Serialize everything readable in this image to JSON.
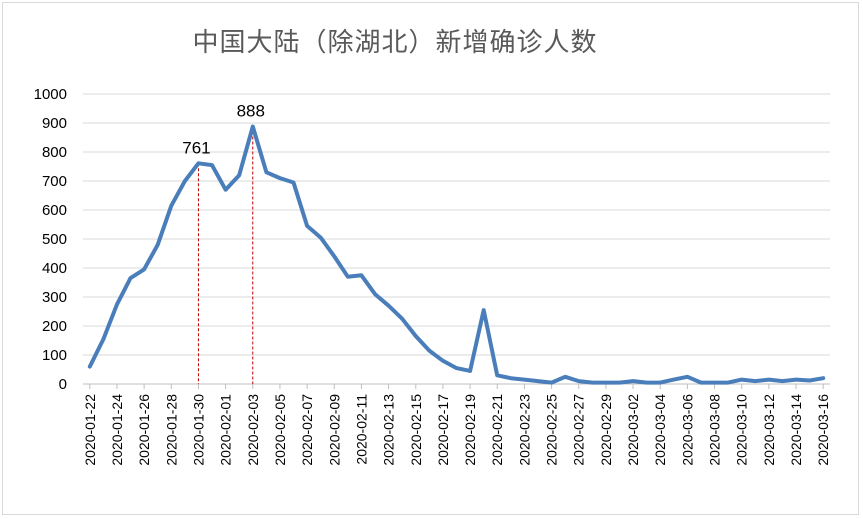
{
  "chart_data": {
    "type": "line",
    "title": "中国大陆（除湖北）新增确诊人数",
    "xlabel": "",
    "ylabel": "",
    "ylim": [
      0,
      1000
    ],
    "yticks": [
      0,
      100,
      200,
      300,
      400,
      500,
      600,
      700,
      800,
      900,
      1000
    ],
    "grid": true,
    "line_color": "#4a7ebb",
    "marker_line_color": "#c00000",
    "x_tick_labels": [
      "2020-01-22",
      "2020-01-24",
      "2020-01-26",
      "2020-01-28",
      "2020-01-30",
      "2020-02-01",
      "2020-02-03",
      "2020-02-05",
      "2020-02-07",
      "2020-02-09",
      "2020-02-11",
      "2020-02-13",
      "2020-02-15",
      "2020-02-17",
      "2020-02-19",
      "2020-02-21",
      "2020-02-23",
      "2020-02-25",
      "2020-02-27",
      "2020-02-29",
      "2020-03-02",
      "2020-03-04",
      "2020-03-06",
      "2020-03-08",
      "2020-03-10",
      "2020-03-12",
      "2020-03-14",
      "2020-03-16"
    ],
    "x": [
      "2020-01-22",
      "2020-01-23",
      "2020-01-24",
      "2020-01-25",
      "2020-01-26",
      "2020-01-27",
      "2020-01-28",
      "2020-01-29",
      "2020-01-30",
      "2020-01-31",
      "2020-02-01",
      "2020-02-02",
      "2020-02-03",
      "2020-02-04",
      "2020-02-05",
      "2020-02-06",
      "2020-02-07",
      "2020-02-08",
      "2020-02-09",
      "2020-02-10",
      "2020-02-11",
      "2020-02-12",
      "2020-02-13",
      "2020-02-14",
      "2020-02-15",
      "2020-02-16",
      "2020-02-17",
      "2020-02-18",
      "2020-02-19",
      "2020-02-20",
      "2020-02-21",
      "2020-02-22",
      "2020-02-23",
      "2020-02-24",
      "2020-02-25",
      "2020-02-26",
      "2020-02-27",
      "2020-02-28",
      "2020-02-29",
      "2020-03-01",
      "2020-03-02",
      "2020-03-03",
      "2020-03-04",
      "2020-03-05",
      "2020-03-06",
      "2020-03-07",
      "2020-03-08",
      "2020-03-09",
      "2020-03-10",
      "2020-03-11",
      "2020-03-12",
      "2020-03-13",
      "2020-03-14",
      "2020-03-15",
      "2020-03-16"
    ],
    "values": [
      60,
      155,
      275,
      365,
      395,
      480,
      615,
      700,
      761,
      755,
      670,
      720,
      888,
      730,
      710,
      695,
      545,
      505,
      440,
      370,
      375,
      310,
      270,
      225,
      165,
      115,
      80,
      55,
      45,
      255,
      30,
      20,
      15,
      10,
      5,
      25,
      10,
      5,
      5,
      5,
      10,
      5,
      5,
      15,
      25,
      5,
      5,
      5,
      15,
      10,
      15,
      10,
      15,
      12,
      20
    ],
    "annotations": [
      {
        "x": "2020-01-30",
        "value": 761,
        "label": "761"
      },
      {
        "x": "2020-02-03",
        "value": 888,
        "label": "888"
      }
    ]
  }
}
